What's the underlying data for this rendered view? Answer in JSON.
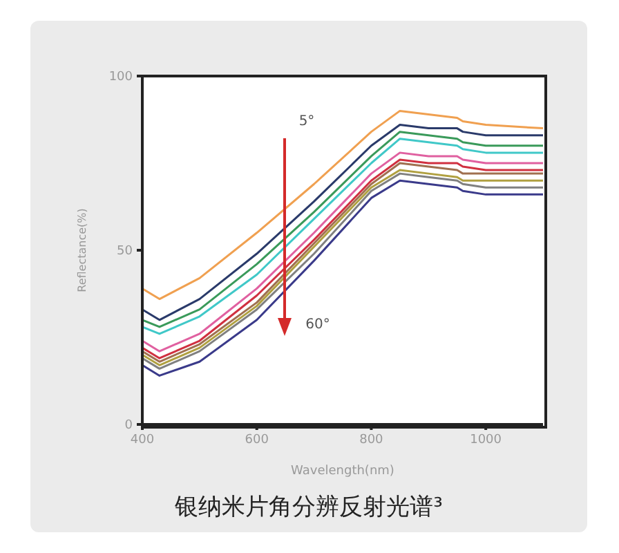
{
  "chart_data": {
    "type": "line",
    "title": "银纳米片角分辨反射光谱³",
    "xlabel": "Wavelength(nm)",
    "ylabel": "Reflectance(%)",
    "x": [
      400,
      430,
      500,
      600,
      700,
      800,
      850,
      900,
      950,
      960,
      1000,
      1100
    ],
    "xlim": [
      400,
      1100
    ],
    "xticks": [
      400,
      600,
      800,
      1000
    ],
    "ylim": [
      0,
      100
    ],
    "yticks": [
      0,
      50,
      100
    ],
    "grid": false,
    "marker": "none",
    "line_style": "solid",
    "annotations": [
      "5°",
      "60°"
    ],
    "series": [
      {
        "color": "#f0a050",
        "values": [
          39,
          36,
          42,
          55,
          69,
          84,
          90,
          89,
          88,
          87,
          86,
          85
        ]
      },
      {
        "color": "#2a3a6a",
        "values": [
          33,
          30,
          36,
          49,
          64,
          80,
          86,
          85,
          85,
          84,
          83,
          83
        ]
      },
      {
        "color": "#3a9a5a",
        "values": [
          30,
          28,
          33,
          46,
          61,
          77,
          84,
          83,
          82,
          81,
          80,
          80
        ]
      },
      {
        "color": "#40c8c8",
        "values": [
          28,
          26,
          31,
          43,
          59,
          75,
          82,
          81,
          80,
          79,
          78,
          78
        ]
      },
      {
        "color": "#e060a0",
        "values": [
          24,
          21,
          26,
          39,
          55,
          72,
          78,
          77,
          77,
          76,
          75,
          75
        ]
      },
      {
        "color": "#d03040",
        "values": [
          22,
          19,
          24,
          37,
          53,
          70,
          76,
          75,
          75,
          74,
          73,
          73
        ]
      },
      {
        "color": "#a07050",
        "values": [
          21,
          18,
          23,
          35,
          52,
          69,
          75,
          74,
          73,
          72,
          72,
          72
        ]
      },
      {
        "color": "#b0a040",
        "values": [
          20,
          17,
          22,
          34,
          51,
          68,
          73,
          72,
          71,
          70,
          70,
          70
        ]
      },
      {
        "color": "#808080",
        "values": [
          19,
          16,
          21,
          33,
          49,
          67,
          72,
          71,
          70,
          69,
          68,
          68
        ]
      },
      {
        "color": "#3a3a8a",
        "values": [
          17,
          14,
          18,
          30,
          47,
          65,
          70,
          69,
          68,
          67,
          66,
          66
        ]
      }
    ]
  }
}
